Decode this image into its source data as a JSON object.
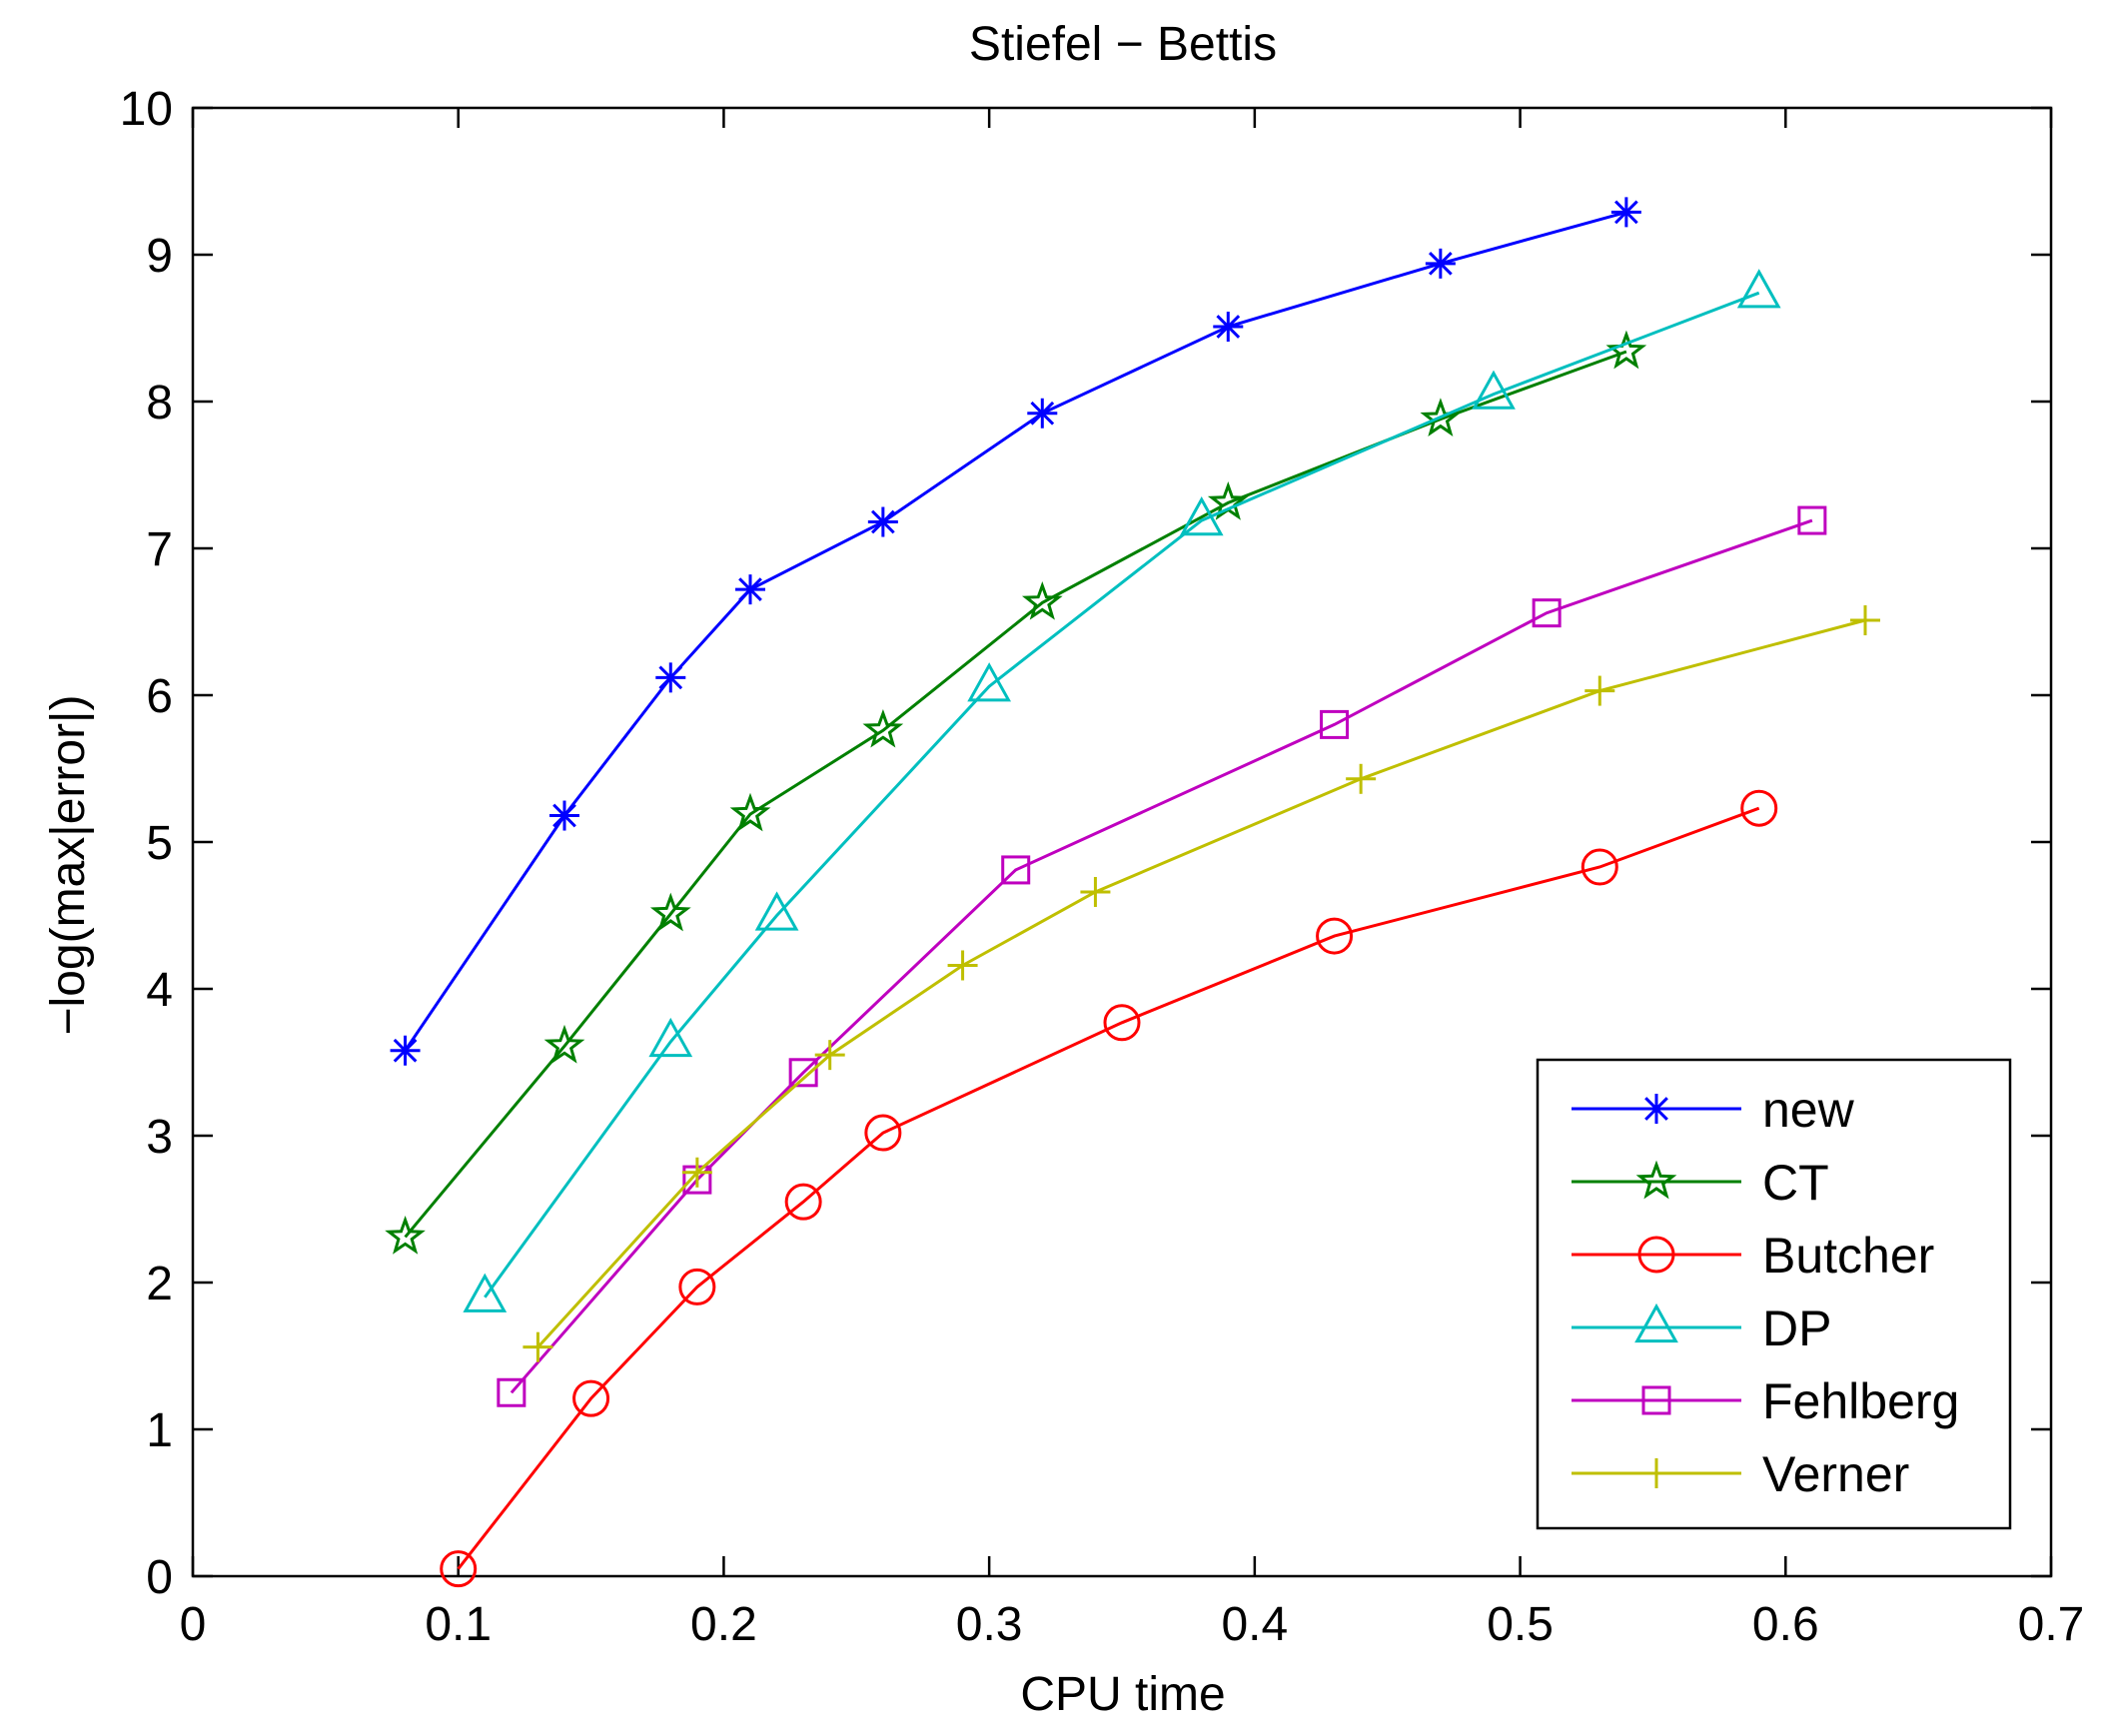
{
  "chart_data": {
    "type": "line",
    "title": "Stiefel − Bettis",
    "xlabel": "CPU time",
    "ylabel": "−log(max|error|)",
    "xlim": [
      0,
      0.7
    ],
    "ylim": [
      0,
      10
    ],
    "xticks": [
      0,
      0.1,
      0.2,
      0.3,
      0.4,
      0.5,
      0.6,
      0.7
    ],
    "xtick_labels": [
      "0",
      "0.1",
      "0.2",
      "0.3",
      "0.4",
      "0.5",
      "0.6",
      "0.7"
    ],
    "yticks": [
      0,
      1,
      2,
      3,
      4,
      5,
      6,
      7,
      8,
      9,
      10
    ],
    "ytick_labels": [
      "0",
      "1",
      "2",
      "3",
      "4",
      "5",
      "6",
      "7",
      "8",
      "9",
      "10"
    ],
    "grid": false,
    "legend_position": "bottom-right",
    "series": [
      {
        "name": "new",
        "color": "#0000ff",
        "marker": "asterisk",
        "x": [
          0.08,
          0.14,
          0.18,
          0.21,
          0.26,
          0.32,
          0.39,
          0.47,
          0.54
        ],
        "y": [
          3.58,
          5.18,
          6.12,
          6.72,
          7.18,
          7.92,
          8.51,
          8.94,
          9.29
        ]
      },
      {
        "name": "CT",
        "color": "#008000",
        "marker": "pentagram",
        "x": [
          0.08,
          0.14,
          0.18,
          0.21,
          0.26,
          0.32,
          0.39,
          0.47,
          0.54
        ],
        "y": [
          2.31,
          3.61,
          4.51,
          5.19,
          5.76,
          6.63,
          7.31,
          7.88,
          8.34
        ]
      },
      {
        "name": "Butcher",
        "color": "#ff0000",
        "marker": "circle",
        "x": [
          0.1,
          0.15,
          0.19,
          0.23,
          0.26,
          0.35,
          0.43,
          0.53,
          0.59
        ],
        "y": [
          0.05,
          1.21,
          1.97,
          2.55,
          3.02,
          3.77,
          4.36,
          4.83,
          5.23
        ]
      },
      {
        "name": "DP",
        "color": "#00bfbf",
        "marker": "triangle",
        "x": [
          0.11,
          0.18,
          0.22,
          0.3,
          0.38,
          0.49,
          0.59
        ],
        "y": [
          1.9,
          3.64,
          4.5,
          6.06,
          7.19,
          8.05,
          8.74
        ]
      },
      {
        "name": "Fehlberg",
        "color": "#bf00bf",
        "marker": "square",
        "x": [
          0.12,
          0.19,
          0.23,
          0.31,
          0.43,
          0.51,
          0.61
        ],
        "y": [
          1.25,
          2.7,
          3.43,
          4.81,
          5.8,
          6.56,
          7.19
        ]
      },
      {
        "name": "Verner",
        "color": "#bfbf00",
        "marker": "plus",
        "x": [
          0.13,
          0.19,
          0.24,
          0.29,
          0.34,
          0.44,
          0.53,
          0.63
        ],
        "y": [
          1.56,
          2.75,
          3.55,
          4.16,
          4.66,
          5.43,
          6.03,
          6.51
        ]
      }
    ]
  }
}
